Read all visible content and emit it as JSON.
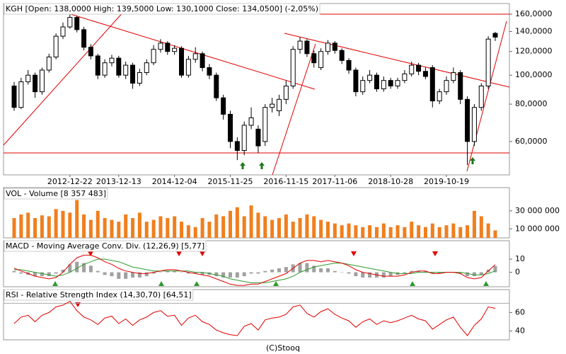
{
  "chart_data": [
    {
      "type": "candlestick",
      "title": "KGH [Open: 138,0000  High: 139,5000  Low: 130,1000  Close: 134,0500] (-2,05%)",
      "log_scale": true,
      "up_color": "#ffffff",
      "down_color": "#000000",
      "categories": [
        null,
        null,
        null,
        null,
        null,
        null,
        null,
        null,
        "2012-12-22",
        null,
        null,
        null,
        null,
        null,
        null,
        "2013-12-13",
        null,
        null,
        null,
        null,
        null,
        null,
        null,
        "2014-12-04",
        null,
        null,
        null,
        null,
        null,
        null,
        null,
        "2015-11-25",
        null,
        null,
        null,
        null,
        null,
        null,
        null,
        "2016-11-15",
        null,
        null,
        null,
        null,
        null,
        null,
        "2017-11-06",
        null,
        null,
        null,
        null,
        null,
        null,
        null,
        "2018-10-28",
        null,
        null,
        null,
        null,
        null,
        null,
        null,
        "2019-10-19",
        null,
        null,
        null,
        null,
        null,
        null,
        null
      ],
      "open": [
        92000,
        78000,
        95000,
        100000,
        88000,
        104000,
        115000,
        135000,
        145000,
        156000,
        142000,
        124000,
        116000,
        100000,
        110000,
        114000,
        100000,
        108000,
        94000,
        102000,
        110000,
        122000,
        128000,
        120000,
        123000,
        100000,
        113000,
        118000,
        106000,
        100000,
        84000,
        74000,
        60000,
        56000,
        68000,
        66000,
        60000,
        78000,
        76000,
        83000,
        92000,
        122000,
        130000,
        118000,
        106000,
        120000,
        128000,
        121000,
        112000,
        104000,
        88000,
        96000,
        100000,
        90000,
        96000,
        92000,
        96000,
        101000,
        108000,
        103000,
        106000,
        82000,
        88000,
        96000,
        102000,
        83000,
        60000,
        78000,
        92000,
        138000
      ],
      "high": [
        95000,
        98000,
        104000,
        102000,
        106000,
        118000,
        138000,
        150000,
        160000,
        158000,
        145000,
        127000,
        118000,
        113000,
        117000,
        116000,
        111000,
        110000,
        105000,
        113000,
        126000,
        132000,
        130000,
        126000,
        125000,
        116000,
        124000,
        120000,
        109000,
        102000,
        86000,
        76000,
        62000,
        70000,
        78000,
        68000,
        80000,
        84000,
        86000,
        96000,
        125000,
        134000,
        132000,
        121000,
        123000,
        131000,
        130000,
        123000,
        114000,
        106000,
        99000,
        104000,
        102000,
        99000,
        98000,
        98000,
        104000,
        111000,
        110000,
        106000,
        108000,
        90000,
        99000,
        106000,
        104000,
        85000,
        80000,
        94000,
        135000,
        139500
      ],
      "low": [
        76000,
        77000,
        93000,
        84000,
        86000,
        102000,
        113000,
        132000,
        143000,
        139000,
        121000,
        113000,
        97000,
        98000,
        107000,
        98000,
        97000,
        90000,
        92000,
        100000,
        108000,
        119000,
        117000,
        117000,
        98000,
        98000,
        110000,
        103000,
        97000,
        82000,
        71000,
        57000,
        52000,
        54000,
        66000,
        55000,
        58000,
        75000,
        73000,
        80000,
        90000,
        118000,
        115000,
        106000,
        104000,
        117000,
        118000,
        109000,
        101000,
        85000,
        86000,
        94000,
        88000,
        88000,
        90000,
        90000,
        94000,
        99000,
        100000,
        97000,
        78000,
        80000,
        86000,
        94000,
        80000,
        50000,
        58000,
        76000,
        90000,
        130100
      ],
      "close": [
        78000,
        95000,
        100000,
        88000,
        104000,
        115000,
        135000,
        145000,
        156000,
        142000,
        124000,
        116000,
        100000,
        110000,
        114000,
        100000,
        108000,
        94000,
        102000,
        110000,
        122000,
        128000,
        120000,
        123000,
        100000,
        113000,
        118000,
        106000,
        100000,
        84000,
        74000,
        60000,
        56000,
        68000,
        72000,
        58000,
        78000,
        80000,
        83000,
        92000,
        122000,
        130000,
        118000,
        110000,
        120000,
        128000,
        121000,
        112000,
        104000,
        88000,
        96000,
        100000,
        90000,
        96000,
        92000,
        96000,
        101000,
        108000,
        103000,
        99000,
        82000,
        88000,
        96000,
        102000,
        83000,
        60000,
        78000,
        92000,
        132000,
        134050
      ],
      "ylim": [
        46400,
        173600
      ],
      "yticks": [
        {
          "value": 60000,
          "label": "60,0000"
        },
        {
          "value": 80000,
          "label": "80,0000"
        },
        {
          "value": 100000,
          "label": "100,0000"
        },
        {
          "value": 120000,
          "label": "120,0000"
        },
        {
          "value": 140000,
          "label": "140,0000"
        },
        {
          "value": 160000,
          "label": "160,0000"
        }
      ]
    },
    {
      "type": "bar",
      "title": "VOL - Volume [8 357 483]",
      "color": "#f07f1e",
      "values": [
        22000000,
        26000000,
        28000000,
        22000000,
        25000000,
        24000000,
        32000000,
        30000000,
        28000000,
        42000000,
        26000000,
        20000000,
        30000000,
        22000000,
        20000000,
        18000000,
        26000000,
        22000000,
        28000000,
        18000000,
        20000000,
        24000000,
        22000000,
        24000000,
        18000000,
        14000000,
        12000000,
        22000000,
        18000000,
        26000000,
        24000000,
        30000000,
        34000000,
        24000000,
        36000000,
        28000000,
        24000000,
        20000000,
        22000000,
        26000000,
        18000000,
        22000000,
        26000000,
        24000000,
        20000000,
        18000000,
        16000000,
        14000000,
        16000000,
        14000000,
        12000000,
        14000000,
        12000000,
        16000000,
        12000000,
        14000000,
        12000000,
        18000000,
        14000000,
        12000000,
        16000000,
        12000000,
        14000000,
        16000000,
        12000000,
        14000000,
        30000000,
        24000000,
        16000000,
        8357483
      ],
      "ylim": [
        0,
        55000000
      ],
      "yticks": [
        {
          "value": 10000000,
          "label": "10 000 000"
        },
        {
          "value": 30000000,
          "label": "30 000 000"
        }
      ]
    },
    {
      "type": "line",
      "title": "MACD - Moving Average Conv. Div. (12,26,9) [5,77]",
      "series": [
        {
          "type": "bar",
          "color": "#a0a0a0",
          "values": [
            1,
            -1,
            -2,
            -3,
            -3,
            -3,
            -1,
            2,
            6,
            8,
            7,
            5,
            1,
            -2,
            -3,
            -5,
            -5,
            -4,
            -4,
            -3,
            -1,
            0,
            1,
            1,
            0,
            -1,
            -1,
            -2,
            -2,
            -3,
            -4,
            -4,
            -4,
            -3,
            -1,
            -1,
            1,
            2,
            3,
            4,
            6,
            7,
            7,
            5,
            3,
            3,
            1,
            0,
            -1,
            -3,
            -4,
            -4,
            -4,
            -4,
            -3,
            -2,
            -1,
            1,
            1,
            1,
            -1,
            -1,
            0,
            0,
            -1,
            -3,
            -3,
            -2,
            2,
            4.77
          ]
        },
        {
          "type": "line",
          "color": "#2e9a2e",
          "values": [
            2,
            2,
            1,
            0,
            -1,
            -2,
            -3,
            -2,
            0,
            3,
            6,
            8,
            10,
            10,
            9,
            8,
            6,
            4,
            3,
            2,
            1,
            1,
            1,
            1,
            1,
            1,
            0,
            0,
            -1,
            -2,
            -3,
            -5,
            -6,
            -7,
            -8,
            -8,
            -8,
            -7,
            -6,
            -5,
            -3,
            0,
            2,
            4,
            5,
            6,
            7,
            7,
            6,
            5,
            4,
            3,
            2,
            1,
            0,
            -1,
            -1,
            -1,
            0,
            0,
            0,
            0,
            0,
            0,
            0,
            -1,
            -2,
            -2,
            -1,
            1
          ]
        },
        {
          "type": "line",
          "color": "#e00000",
          "values": [
            3,
            1,
            -1,
            -3,
            -4,
            -5,
            -4,
            0,
            6,
            11,
            13,
            13,
            11,
            8,
            6,
            3,
            1,
            0,
            -1,
            -1,
            0,
            1,
            2,
            2,
            1,
            0,
            -1,
            -2,
            -3,
            -5,
            -7,
            -9,
            -10,
            -10,
            -9,
            -9,
            -7,
            -5,
            -3,
            -1,
            3,
            7,
            9,
            9,
            8,
            9,
            8,
            7,
            5,
            2,
            0,
            -1,
            -2,
            -3,
            -3,
            -3,
            -2,
            0,
            1,
            1,
            -1,
            -1,
            0,
            0,
            -1,
            -4,
            -5,
            -4,
            1,
            5.77
          ]
        }
      ],
      "ylim": [
        -11,
        24
      ],
      "yticks": [
        0,
        10
      ]
    },
    {
      "type": "line",
      "title": "RSI - Relative Strength Index (14,30,70) [64,51]",
      "series": [
        {
          "type": "line",
          "color": "#e00000",
          "values": [
            48,
            55,
            57,
            50,
            57,
            60,
            66,
            68,
            72,
            62,
            55,
            52,
            47,
            54,
            56,
            48,
            53,
            46,
            52,
            55,
            60,
            62,
            56,
            57,
            46,
            54,
            57,
            50,
            47,
            41,
            38,
            36,
            35,
            45,
            48,
            41,
            52,
            54,
            55,
            58,
            66,
            68,
            59,
            55,
            61,
            64,
            58,
            54,
            51,
            44,
            50,
            53,
            47,
            51,
            49,
            51,
            54,
            57,
            53,
            51,
            42,
            47,
            52,
            55,
            44,
            35,
            46,
            53,
            66,
            64.51
          ]
        }
      ],
      "hlines": [
        70
      ],
      "ylim": [
        30.4,
        84.8
      ],
      "yticks": [
        40,
        60
      ]
    }
  ],
  "footer": "(C)Stooq"
}
